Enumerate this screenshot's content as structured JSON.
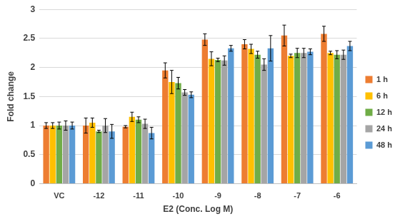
{
  "chart_data": {
    "type": "bar",
    "x_label": "E2 (Conc. Log M)",
    "y_label": "Fold change",
    "categories": [
      "VC",
      "-12",
      "-11",
      "-10",
      "-9",
      "-8",
      "-7",
      "-6"
    ],
    "series": [
      {
        "name": "1 h",
        "color": "#ed7d31",
        "values": [
          1.0,
          1.0,
          0.98,
          1.95,
          2.48,
          2.4,
          2.55,
          2.58
        ],
        "errors": [
          0.05,
          0.13,
          0.02,
          0.13,
          0.1,
          0.08,
          0.18,
          0.13
        ]
      },
      {
        "name": "6 h",
        "color": "#ffc000",
        "values": [
          1.0,
          1.05,
          1.15,
          1.75,
          2.15,
          2.32,
          2.2,
          2.25
        ],
        "errors": [
          0.05,
          0.08,
          0.08,
          0.2,
          0.12,
          0.08,
          0.03,
          0.03
        ]
      },
      {
        "name": "12 h",
        "color": "#70ad47",
        "values": [
          1.0,
          0.9,
          1.1,
          1.73,
          2.13,
          2.22,
          2.25,
          2.22
        ],
        "errors": [
          0.06,
          0.02,
          0.05,
          0.1,
          0.03,
          0.06,
          0.08,
          0.07
        ]
      },
      {
        "name": "24 h",
        "color": "#a5a5a5",
        "values": [
          1.0,
          1.0,
          1.03,
          1.57,
          2.12,
          2.05,
          2.25,
          2.22
        ],
        "errors": [
          0.08,
          0.12,
          0.08,
          0.05,
          0.08,
          0.1,
          0.08,
          0.08
        ]
      },
      {
        "name": "48 h",
        "color": "#5b9bd5",
        "values": [
          1.0,
          0.9,
          0.87,
          1.53,
          2.33,
          2.33,
          2.27,
          2.37
        ],
        "errors": [
          0.06,
          0.12,
          0.1,
          0.05,
          0.05,
          0.22,
          0.05,
          0.08
        ]
      }
    ],
    "ylim": [
      0,
      3
    ],
    "yticks": [
      0,
      0.5,
      1,
      1.5,
      2,
      2.5,
      3
    ],
    "grid": true,
    "legend": "right"
  }
}
